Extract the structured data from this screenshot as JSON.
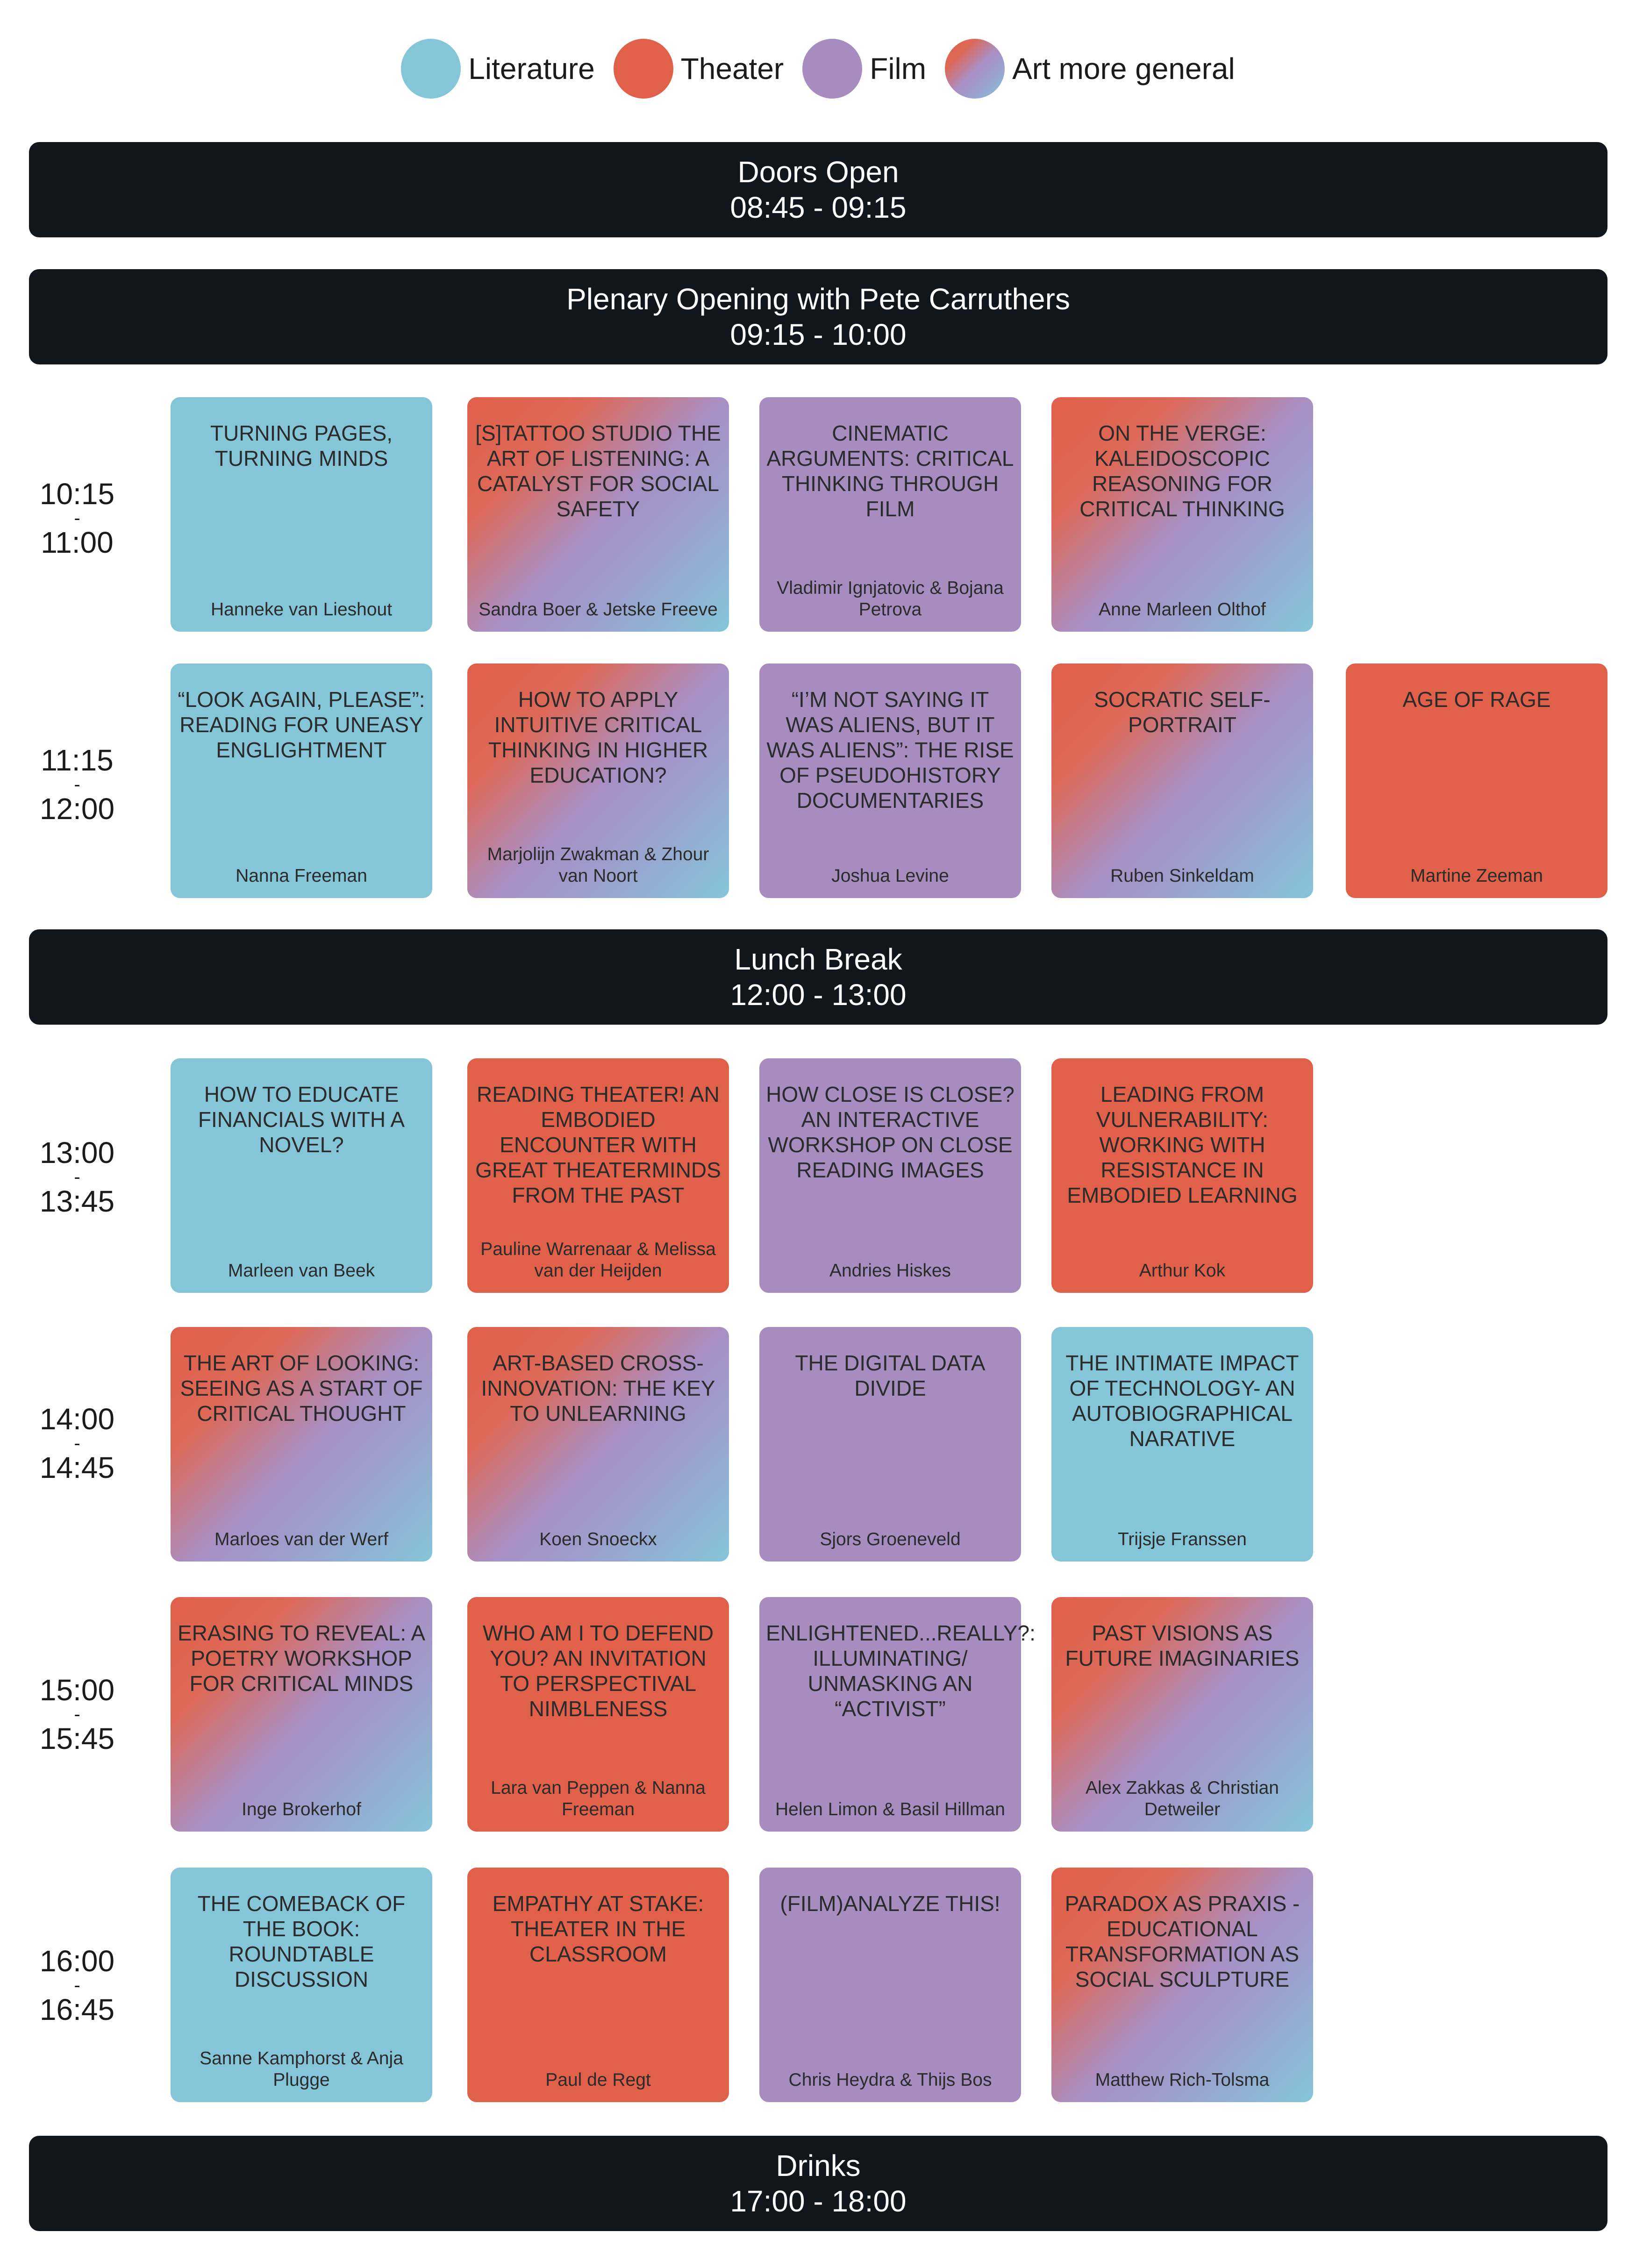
{
  "legend": [
    {
      "label": "Literature",
      "category": "literature",
      "color": "#85c5d8"
    },
    {
      "label": "Theater",
      "category": "theater",
      "color": "#e0604a"
    },
    {
      "label": "Film",
      "category": "film",
      "color": "#a78cc0"
    },
    {
      "label": "Art more general",
      "category": "general",
      "color": "gradient"
    }
  ],
  "banners": {
    "doors": {
      "title": "Doors Open",
      "time": "08:45 - 09:15"
    },
    "plenary": {
      "title": "Plenary Opening with Pete Carruthers",
      "time": "09:15 - 10:00"
    },
    "lunch": {
      "title": "Lunch Break",
      "time": "12:00 - 13:00"
    },
    "drinks": {
      "title": "Drinks",
      "time": "17:00 - 18:00"
    }
  },
  "slots": [
    {
      "start": "10:15",
      "end": "11:00",
      "sessions": [
        {
          "title": "Turning pages, turning minds",
          "speaker": "Hanneke van Lieshout",
          "category": "literature"
        },
        {
          "title": "[s]tattoo studio the art of listening: a catalyst for social safety",
          "speaker": "Sandra Boer & Jetske Freeve",
          "category": "general"
        },
        {
          "title": "Cinematic arguments: critical thinking through film",
          "speaker": "Vladimir Ignjatovic & Bojana Petrova",
          "category": "film"
        },
        {
          "title": "On the verge: kaleidoscopic reasoning for critical thinking",
          "speaker": "Anne Marleen Olthof",
          "category": "general"
        }
      ]
    },
    {
      "start": "11:15",
      "end": "12:00",
      "sessions": [
        {
          "title": "“Look again, please”: reading for uneasy englightment",
          "speaker": "Nanna Freeman",
          "category": "literature"
        },
        {
          "title": "How to apply intuitive critical thinking in higher education?",
          "speaker": "Marjolijn Zwakman & Zhour van Noort",
          "category": "general"
        },
        {
          "title": "“I’m not saying it was aliens, but it was aliens”: the rise of pseudohistory documentaries",
          "speaker": "Joshua Levine",
          "category": "film"
        },
        {
          "title": "Socratic self-portrait",
          "speaker": "Ruben Sinkeldam",
          "category": "general"
        },
        {
          "title": "Age of rage",
          "speaker": "Martine Zeeman",
          "category": "theater"
        }
      ]
    },
    {
      "start": "13:00",
      "end": "13:45",
      "sessions": [
        {
          "title": "How to educate financials with a novel?",
          "speaker": "Marleen van Beek",
          "category": "literature"
        },
        {
          "title": "Reading theater! An embodied encounter with great theaterminds from the past",
          "speaker": "Pauline Warrenaar & Melissa van der Heijden",
          "category": "theater"
        },
        {
          "title": "How close is close? An interactive workshop on close reading images",
          "speaker": "Andries Hiskes",
          "category": "film"
        },
        {
          "title": "Leading from vulnerability: working with resistance in embodied learning",
          "speaker": "Arthur Kok",
          "category": "theater"
        }
      ]
    },
    {
      "start": "14:00",
      "end": "14:45",
      "sessions": [
        {
          "title": "The art of looking: seeing as a start of critical thought",
          "speaker": "Marloes van der Werf",
          "category": "general"
        },
        {
          "title": "Art-based cross-innovation: the key to unlearning",
          "speaker": "Koen Snoeckx",
          "category": "general"
        },
        {
          "title": "The digital data divide",
          "speaker": "Sjors Groeneveld",
          "category": "film"
        },
        {
          "title": "The intimate impact of technology- an autobiographical narative",
          "speaker": "Trijsje Franssen",
          "category": "literature"
        }
      ]
    },
    {
      "start": "15:00",
      "end": "15:45",
      "sessions": [
        {
          "title": "Erasing to reveal: a poetry workshop for critical minds",
          "speaker": "Inge Brokerhof",
          "category": "general"
        },
        {
          "title": "Who am I to defend you? An invitation to perspectival nimbleness",
          "speaker": "Lara van Peppen & Nanna Freeman",
          "category": "theater"
        },
        {
          "title": "Enlightened...really?: illuminating/ unmasking an “activist”",
          "speaker": "Helen Limon & Basil Hillman",
          "category": "film"
        },
        {
          "title": "Past visions as future imaginaries",
          "speaker": "Alex Zakkas & Christian Detweiler",
          "category": "general"
        }
      ]
    },
    {
      "start": "16:00",
      "end": "16:45",
      "sessions": [
        {
          "title": "The comeback of the book: roundtable discussion",
          "speaker": "Sanne Kamphorst & Anja Plugge",
          "category": "literature"
        },
        {
          "title": "Empathy at stake: theater in the classroom",
          "speaker": "Paul de Regt",
          "category": "theater"
        },
        {
          "title": "(Film)analyze this!",
          "speaker": "Chris Heydra & Thijs Bos",
          "category": "film"
        },
        {
          "title": "Paradox as praxis - educational transformation as social sculpture",
          "speaker": "Matthew Rich-Tolsma",
          "category": "general"
        }
      ]
    }
  ]
}
